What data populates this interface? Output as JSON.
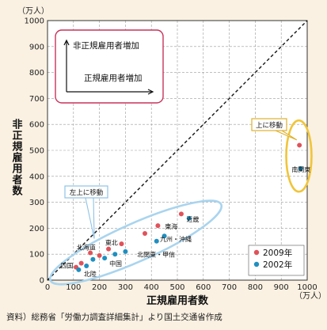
{
  "chart_data": {
    "type": "scatter",
    "x_axis": {
      "label": "正規雇用者数",
      "unit": "（万人）",
      "range": [
        0,
        1000
      ],
      "ticks": [
        0,
        100,
        200,
        300,
        400,
        500,
        600,
        700,
        800,
        900,
        1000
      ]
    },
    "y_axis": {
      "label": "非正規雇用者数",
      "unit": "（万人）",
      "range": [
        0,
        1000
      ],
      "ticks": [
        0,
        100,
        200,
        300,
        400,
        500,
        600,
        700,
        800,
        900,
        1000
      ]
    },
    "grid": true,
    "diagonal_reference": true,
    "series": [
      {
        "name": "2009年",
        "color": "#e0525a",
        "points": [
          {
            "region": "南関東",
            "x": 970,
            "y": 520
          },
          {
            "region": "近畿",
            "x": 515,
            "y": 255
          },
          {
            "region": "東海",
            "x": 425,
            "y": 210
          },
          {
            "region": "九州・沖縄",
            "x": 375,
            "y": 180
          },
          {
            "region": "北関東・甲信",
            "x": 285,
            "y": 140
          },
          {
            "region": "東北",
            "x": 235,
            "y": 120
          },
          {
            "region": "中国",
            "x": 200,
            "y": 95
          },
          {
            "region": "北海道",
            "x": 165,
            "y": 105
          },
          {
            "region": "四国",
            "x": 110,
            "y": 50
          },
          {
            "region": "北陸",
            "x": 130,
            "y": 65
          }
        ]
      },
      {
        "name": "2002年",
        "color": "#1f8fc0",
        "points": [
          {
            "region": "南関東",
            "x": 975,
            "y": 430
          },
          {
            "region": "近畿",
            "x": 545,
            "y": 238
          },
          {
            "region": "東海",
            "x": 450,
            "y": 170
          },
          {
            "region": "九州・沖縄",
            "x": 420,
            "y": 150
          },
          {
            "region": "北関東・甲信",
            "x": 300,
            "y": 110
          },
          {
            "region": "東北",
            "x": 260,
            "y": 100
          },
          {
            "region": "中国",
            "x": 220,
            "y": 85
          },
          {
            "region": "北海道",
            "x": 175,
            "y": 80
          },
          {
            "region": "四国",
            "x": 120,
            "y": 40
          },
          {
            "region": "北陸",
            "x": 150,
            "y": 55
          }
        ]
      }
    ],
    "labels": [
      {
        "text": "南関東",
        "x": 940,
        "y": 418
      },
      {
        "text": "近畿",
        "x": 535,
        "y": 225
      },
      {
        "text": "東海",
        "x": 452,
        "y": 198
      },
      {
        "text": "九州・沖縄",
        "x": 433,
        "y": 150
      },
      {
        "text": "北関東・甲信",
        "x": 345,
        "y": 90
      },
      {
        "text": "東北",
        "x": 222,
        "y": 135
      },
      {
        "text": "北海道",
        "x": 112,
        "y": 117
      },
      {
        "text": "中国",
        "x": 238,
        "y": 55
      },
      {
        "text": "四国",
        "x": 50,
        "y": 48
      },
      {
        "text": "北陸",
        "x": 140,
        "y": 15
      }
    ],
    "callouts": [
      {
        "text": "上に移動"
      },
      {
        "text": "左上に移動"
      }
    ],
    "inset": {
      "vertical_label": "非正規雇用者増加",
      "horizontal_label": "正規雇用者増加"
    }
  },
  "source_note": "資料）総務省「労働力調査詳細集計」より国土交通省作成"
}
